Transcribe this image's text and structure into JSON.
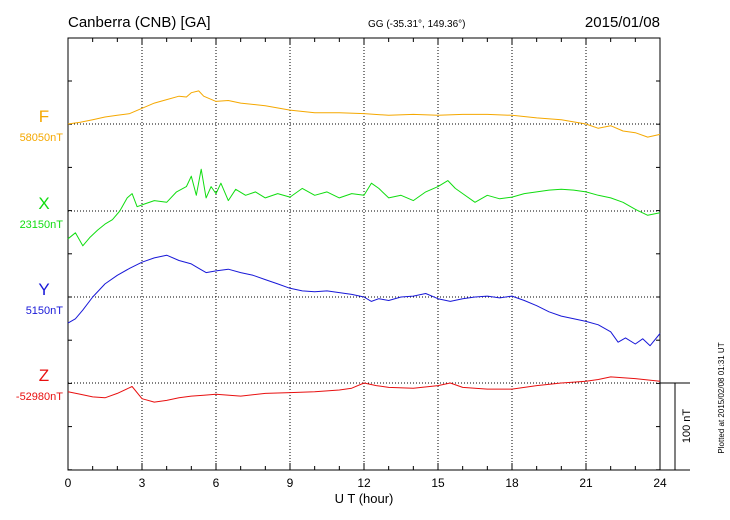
{
  "header": {
    "station": "Canberra (CNB)  [GA]",
    "coords": "GG (-35.31°, 149.36°)",
    "date": "2015/01/08"
  },
  "plotted_note": "Plotted at 2015/02/08 01:31  UT",
  "chart_data": {
    "type": "line",
    "title": "Canberra (CNB)  [GA]",
    "xlabel": "U T (hour)",
    "ylabel": "",
    "xlim": [
      0,
      24
    ],
    "x_ticks": [
      "0",
      "3",
      "6",
      "9",
      "12",
      "15",
      "18",
      "21",
      "24"
    ],
    "grid": true,
    "scale_bar": {
      "label": "100 nT",
      "value_nT": 100
    },
    "series": [
      {
        "name": "F",
        "baseline_label": "58050nT",
        "baseline_nT": 58050,
        "color": "#f5a800",
        "x": [
          0,
          0.5,
          1,
          1.5,
          2,
          2.5,
          3,
          3.5,
          4,
          4.5,
          4.8,
          5,
          5.3,
          5.5,
          6,
          6.5,
          7,
          8,
          9,
          10,
          11,
          12,
          13,
          14,
          15,
          16,
          17,
          18,
          19,
          20,
          21,
          21.5,
          22,
          22.5,
          23,
          23.5,
          24
        ],
        "values": [
          58050,
          58052,
          58055,
          58058,
          58060,
          58062,
          58068,
          58074,
          58078,
          58082,
          58081,
          58086,
          58088,
          58082,
          58076,
          58077,
          58074,
          58071,
          58066,
          58063,
          58063,
          58062,
          58060,
          58061,
          58060,
          58061,
          58061,
          58060,
          58057,
          58055,
          58050,
          58045,
          58048,
          58042,
          58040,
          58035,
          58038
        ]
      },
      {
        "name": "X",
        "baseline_label": "23150nT",
        "baseline_nT": 23150,
        "color": "#10dd10",
        "x": [
          0,
          0.3,
          0.6,
          0.9,
          1.2,
          1.5,
          1.8,
          2.1,
          2.4,
          2.6,
          2.8,
          3.1,
          3.5,
          4,
          4.4,
          4.8,
          5,
          5.2,
          5.4,
          5.6,
          5.8,
          6,
          6.2,
          6.5,
          6.8,
          7.2,
          7.6,
          8,
          8.5,
          9,
          9.5,
          10,
          10.5,
          11,
          11.5,
          12,
          12.3,
          12.6,
          13,
          13.5,
          14,
          14.5,
          15,
          15.4,
          15.7,
          16,
          16.5,
          17,
          17.5,
          18,
          18.5,
          19,
          19.5,
          20,
          20.5,
          21,
          21.5,
          22,
          22.5,
          23,
          23.5,
          24
        ],
        "values": [
          23118,
          23125,
          23110,
          23120,
          23128,
          23135,
          23140,
          23150,
          23165,
          23170,
          23155,
          23158,
          23162,
          23160,
          23172,
          23178,
          23190,
          23168,
          23198,
          23165,
          23178,
          23170,
          23182,
          23162,
          23175,
          23168,
          23172,
          23165,
          23170,
          23166,
          23176,
          23168,
          23172,
          23165,
          23170,
          23168,
          23182,
          23176,
          23165,
          23168,
          23162,
          23172,
          23178,
          23185,
          23176,
          23170,
          23160,
          23168,
          23164,
          23166,
          23170,
          23172,
          23174,
          23175,
          23174,
          23172,
          23168,
          23165,
          23160,
          23152,
          23145,
          23148
        ]
      },
      {
        "name": "Y",
        "baseline_label": "5150nT",
        "baseline_nT": 5150,
        "color": "#1818d8",
        "x": [
          0,
          0.3,
          0.6,
          1,
          1.5,
          2,
          2.5,
          3,
          3.5,
          4,
          4.5,
          5,
          5.3,
          5.6,
          6,
          6.5,
          7,
          7.5,
          8,
          8.5,
          9,
          9.5,
          10,
          10.5,
          11,
          11.5,
          12,
          12.3,
          12.6,
          13,
          13.5,
          14,
          14.5,
          15,
          15.5,
          16,
          16.5,
          17,
          17.5,
          18,
          18.5,
          19,
          19.5,
          20,
          20.5,
          21,
          21.5,
          22,
          22.3,
          22.6,
          23,
          23.3,
          23.6,
          24
        ],
        "values": [
          5120,
          5125,
          5135,
          5150,
          5165,
          5175,
          5183,
          5190,
          5195,
          5198,
          5192,
          5188,
          5183,
          5178,
          5180,
          5182,
          5178,
          5175,
          5170,
          5165,
          5160,
          5157,
          5156,
          5157,
          5155,
          5153,
          5150,
          5145,
          5148,
          5146,
          5150,
          5151,
          5154,
          5148,
          5145,
          5148,
          5150,
          5151,
          5149,
          5151,
          5146,
          5140,
          5133,
          5128,
          5125,
          5122,
          5118,
          5110,
          5098,
          5103,
          5096,
          5102,
          5094,
          5108
        ]
      },
      {
        "name": "Z",
        "baseline_label": "-52980nT",
        "baseline_nT": -52980,
        "color": "#e81010",
        "x": [
          0,
          0.5,
          1,
          1.5,
          2,
          2.6,
          3,
          3.5,
          4,
          4.5,
          5,
          5.5,
          6,
          7,
          8,
          9,
          10,
          11,
          11.5,
          12,
          12.5,
          13,
          14,
          15,
          15.5,
          16,
          17,
          18,
          19,
          20,
          21,
          21.5,
          22,
          23,
          24
        ],
        "values": [
          -52990,
          -52993,
          -52996,
          -52997,
          -52992,
          -52984,
          -52998,
          -53002,
          -53000,
          -52997,
          -52995,
          -52994,
          -52993,
          -52995,
          -52992,
          -52991,
          -52990,
          -52988,
          -52986,
          -52980,
          -52983,
          -52985,
          -52986,
          -52983,
          -52980,
          -52985,
          -52987,
          -52987,
          -52983,
          -52980,
          -52978,
          -52976,
          -52973,
          -52975,
          -52978
        ]
      }
    ]
  }
}
